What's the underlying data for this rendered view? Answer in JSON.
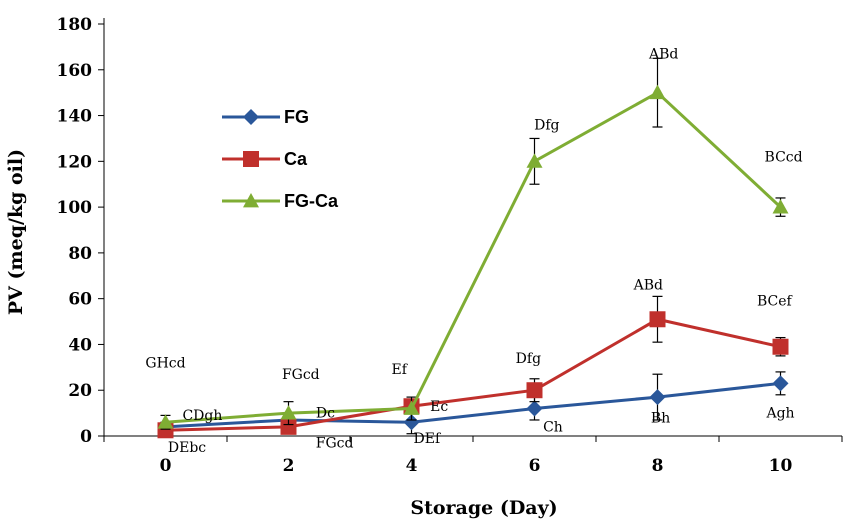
{
  "chart_data": {
    "type": "line",
    "xlabel": "Storage (Day)",
    "ylabel": "PV (meq/kg oil)",
    "x": [
      0,
      2,
      4,
      6,
      8,
      10
    ],
    "xlim": [
      -1,
      11
    ],
    "ylim": [
      0,
      180
    ],
    "yticks": [
      0,
      20,
      40,
      60,
      80,
      100,
      120,
      140,
      160,
      180
    ],
    "grid": false,
    "legend_position": "upper-left",
    "series": [
      {
        "name": "FG",
        "color": "#2a579a",
        "marker": "diamond",
        "values": [
          4,
          7,
          6,
          12,
          17,
          23
        ],
        "errors": [
          2,
          3,
          5,
          5,
          10,
          5
        ]
      },
      {
        "name": "Ca",
        "color": "#c0302c",
        "marker": "square",
        "values": [
          2.5,
          4,
          13,
          20,
          51,
          39
        ],
        "errors": [
          2,
          2,
          3,
          5,
          10,
          4
        ]
      },
      {
        "name": "FG-Ca",
        "color": "#7fad34",
        "marker": "triangle",
        "values": [
          6,
          10,
          12,
          120,
          150,
          100
        ],
        "errors": [
          3,
          5,
          5,
          10,
          15,
          4
        ]
      }
    ],
    "annotations": [
      {
        "text": "GHcd",
        "x": 0,
        "y": 30
      },
      {
        "text": "CDgh",
        "x": 0.6,
        "y": 7
      },
      {
        "text": "DEbc",
        "x": 0.35,
        "y": -7
      },
      {
        "text": "FGcd",
        "x": 2.2,
        "y": 25
      },
      {
        "text": "Dc",
        "x": 2.6,
        "y": 8
      },
      {
        "text": "FGcd",
        "x": 2.75,
        "y": -5
      },
      {
        "text": "Ef",
        "x": 3.8,
        "y": 27
      },
      {
        "text": "Ec",
        "x": 4.45,
        "y": 11
      },
      {
        "text": "DEf",
        "x": 4.25,
        "y": -3
      },
      {
        "text": "Dfg",
        "x": 5.9,
        "y": 32
      },
      {
        "text": "Ch",
        "x": 6.3,
        "y": 2
      },
      {
        "text": "ABd",
        "x": 7.85,
        "y": 64
      },
      {
        "text": "Bh",
        "x": 8.05,
        "y": 6
      },
      {
        "text": "BCef",
        "x": 9.9,
        "y": 57
      },
      {
        "text": "Agh",
        "x": 10,
        "y": 8
      },
      {
        "text": "Dfg",
        "x": 6.2,
        "y": 134
      },
      {
        "text": "ABd",
        "x": 8.1,
        "y": 165
      },
      {
        "text": "BCcd",
        "x": 10.05,
        "y": 120
      }
    ]
  }
}
